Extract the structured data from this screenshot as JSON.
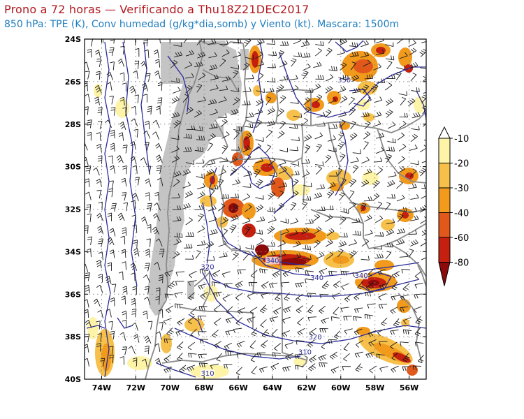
{
  "header": {
    "title": "Prono a 72 horas — Verificando a Thu18Z21DEC2017",
    "subtitle": "850 hPa: TPE (K), Conv humedad (g/kg*dia,somb) y Viento (kt). Mascara: 1500m"
  },
  "map": {
    "lat_labels": [
      "24S",
      "26S",
      "28S",
      "30S",
      "32S",
      "34S",
      "36S",
      "38S",
      "40S"
    ],
    "lon_labels": [
      "74W",
      "72W",
      "70W",
      "68W",
      "66W",
      "64W",
      "62W",
      "60W",
      "58W",
      "56W"
    ],
    "lat_values": [
      -24,
      -26,
      -28,
      -30,
      -32,
      -34,
      -36,
      -38,
      -40
    ],
    "lon_values": [
      -74,
      -72,
      -70,
      -68,
      -66,
      -64,
      -62,
      -60,
      -58,
      -56
    ],
    "extent": {
      "lon_min": -75,
      "lon_max": -55,
      "lat_min": -40,
      "lat_max": -24
    },
    "contour_labels": [
      {
        "text": "350",
        "lon": -59.8,
        "lat": -26.0
      },
      {
        "text": "340",
        "lon": -64.0,
        "lat": -34.5
      },
      {
        "text": "340",
        "lon": -61.4,
        "lat": -35.3
      },
      {
        "text": "340",
        "lon": -58.8,
        "lat": -35.2
      },
      {
        "text": "320",
        "lon": -67.8,
        "lat": -34.8
      },
      {
        "text": "320",
        "lon": -61.5,
        "lat": -38.1
      },
      {
        "text": "310",
        "lon": -62.1,
        "lat": -38.8
      },
      {
        "text": "310",
        "lon": -67.8,
        "lat": -39.8
      }
    ]
  },
  "legend": {
    "labels": [
      "-10",
      "-20",
      "-30",
      "-40",
      "-60",
      "-80"
    ],
    "colors": [
      "#ffffff",
      "#fef4a8",
      "#f6c04a",
      "#f19a1c",
      "#e2581b",
      "#c41f0f",
      "#8c0a0a"
    ]
  },
  "colors": {
    "contour": "#2b2b9a",
    "mask": "#c4c4c4",
    "boundary": "#8a8a8a"
  }
}
